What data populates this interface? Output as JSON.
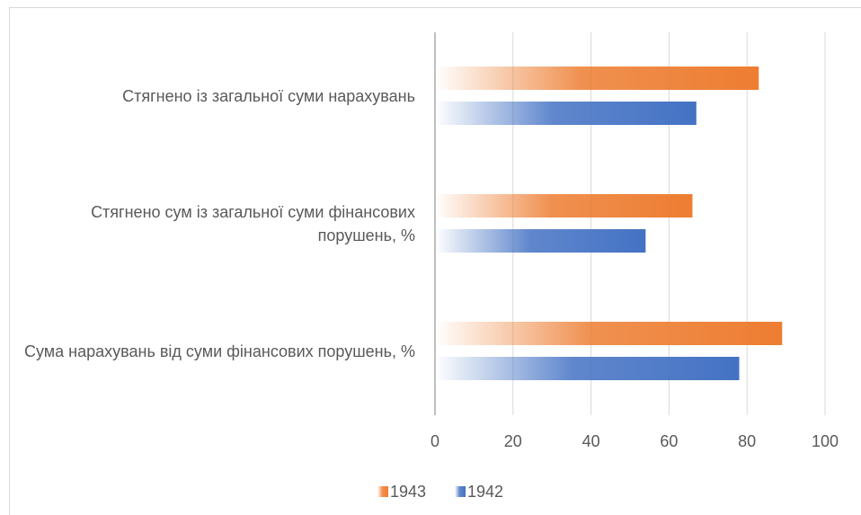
{
  "chart_data": {
    "type": "barh",
    "categories": [
      "Стягнено із загальної суми нарахувань",
      "Стягнено сум із загальної суми фінансових порушень, %",
      "Сума нарахувань від суми фінансових порушень, %"
    ],
    "series": [
      {
        "name": "1943",
        "color": "#ed7d31",
        "values": [
          83,
          66,
          89
        ]
      },
      {
        "name": "1942",
        "color": "#4472c4",
        "values": [
          67,
          54,
          78
        ]
      }
    ],
    "xlim": [
      0,
      100
    ],
    "xticks": [
      0,
      20,
      40,
      60,
      80,
      100
    ],
    "grid": true,
    "legend": "bottom"
  }
}
